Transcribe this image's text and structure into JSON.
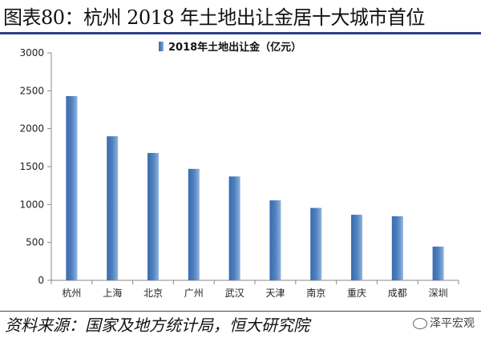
{
  "title": "图表80：杭州 2018 年土地出让金居十大城市首位",
  "source": "资料来源：国家及地方统计局，恒大研究院",
  "watermark": "泽平宏观",
  "colors": {
    "bar": "#4f81bd",
    "title_rule": "#2b3f8c"
  },
  "chart_data": {
    "type": "bar",
    "categories": [
      "杭州",
      "上海",
      "北京",
      "广州",
      "武汉",
      "天津",
      "南京",
      "重庆",
      "成都",
      "深圳"
    ],
    "series": [
      {
        "name": "2018年土地出让金（亿元）",
        "values": [
          2430,
          1900,
          1680,
          1470,
          1370,
          1055,
          955,
          865,
          845,
          445
        ]
      }
    ],
    "ylim": [
      0,
      3000
    ],
    "yticks": [
      0,
      500,
      1000,
      1500,
      2000,
      2500,
      3000
    ],
    "legend": "top-center",
    "grid": false
  }
}
